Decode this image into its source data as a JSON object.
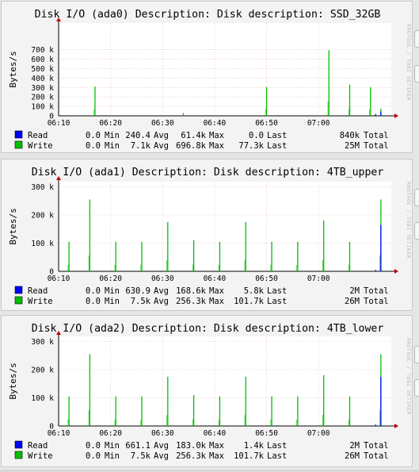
{
  "chart_data": [
    {
      "type": "line",
      "title": "Disk I/O (ada0) Description: Disk description: SSD_32GB",
      "ylabel": "Bytes/s",
      "watermark": "RRDTOOL / TOBI OETIKER",
      "x_ticks": [
        "06:10",
        "06:20",
        "06:30",
        "06:40",
        "06:50",
        "07:00"
      ],
      "y_ticks": [
        "0",
        "100 k",
        "200 k",
        "300 k",
        "400 k",
        "500 k",
        "600 k",
        "700 k"
      ],
      "ylim": [
        0,
        740000
      ],
      "grid": true,
      "series": [
        {
          "name": "Read",
          "color": "#0000ff",
          "stats": [
            "0.0",
            "Min",
            "240.4",
            "Avg",
            "61.4k",
            "Max",
            "0.0",
            "Last",
            "840k",
            "Total"
          ],
          "spikes": [
            [
              "07:11",
              20000
            ],
            [
              "07:12",
              45000
            ]
          ]
        },
        {
          "name": "Write",
          "color": "#00c000",
          "stats": [
            "0.0",
            "Min",
            "7.1k",
            "Avg",
            "696.8k",
            "Max",
            "77.3k",
            "Last",
            "25M",
            "Total"
          ],
          "spikes": [
            [
              "06:17",
              310000
            ],
            [
              "06:34",
              30000
            ],
            [
              "06:50",
              305000
            ],
            [
              "07:02",
              695000
            ],
            [
              "07:06",
              330000
            ],
            [
              "07:10",
              305000
            ],
            [
              "07:12",
              77000
            ]
          ]
        }
      ]
    },
    {
      "type": "line",
      "title": "Disk I/O (ada1) Description: Disk description: 4TB_upper",
      "ylabel": "Bytes/s",
      "watermark": "RRDTOOL / TOBI OETIKER",
      "x_ticks": [
        "06:10",
        "06:20",
        "06:30",
        "06:40",
        "06:50",
        "07:00"
      ],
      "y_ticks": [
        "0",
        "100 k",
        "200 k",
        "300 k"
      ],
      "ylim": [
        0,
        310000
      ],
      "grid": true,
      "series": [
        {
          "name": "Read",
          "color": "#0000ff",
          "stats": [
            "0.0",
            "Min",
            "630.9",
            "Avg",
            "168.6k",
            "Max",
            "5.8k",
            "Last",
            "2M",
            "Total"
          ],
          "spikes": [
            [
              "07:11",
              5000
            ],
            [
              "07:12",
              165000
            ]
          ]
        },
        {
          "name": "Write",
          "color": "#00c000",
          "stats": [
            "0.0",
            "Min",
            "7.5k",
            "Avg",
            "256.3k",
            "Max",
            "101.7k",
            "Last",
            "26M",
            "Total"
          ],
          "spikes": [
            [
              "06:12",
              105000
            ],
            [
              "06:16",
              255000
            ],
            [
              "06:21",
              105000
            ],
            [
              "06:26",
              105000
            ],
            [
              "06:31",
              175000
            ],
            [
              "06:36",
              110000
            ],
            [
              "06:41",
              105000
            ],
            [
              "06:46",
              175000
            ],
            [
              "06:51",
              105000
            ],
            [
              "06:56",
              105000
            ],
            [
              "07:01",
              180000
            ],
            [
              "07:06",
              105000
            ],
            [
              "07:12",
              255000
            ]
          ]
        }
      ]
    },
    {
      "type": "line",
      "title": "Disk I/O (ada2) Description: Disk description: 4TB_lower",
      "ylabel": "Bytes/s",
      "watermark": "RRDTOOL / TOBI OETIKER",
      "x_ticks": [
        "06:10",
        "06:20",
        "06:30",
        "06:40",
        "06:50",
        "07:00"
      ],
      "y_ticks": [
        "0",
        "100 k",
        "200 k",
        "300 k"
      ],
      "ylim": [
        0,
        310000
      ],
      "grid": true,
      "series": [
        {
          "name": "Read",
          "color": "#0000ff",
          "stats": [
            "0.0",
            "Min",
            "661.1",
            "Avg",
            "183.0k",
            "Max",
            "1.4k",
            "Last",
            "2M",
            "Total"
          ],
          "spikes": [
            [
              "07:11",
              5000
            ],
            [
              "07:12",
              175000
            ]
          ]
        },
        {
          "name": "Write",
          "color": "#00c000",
          "stats": [
            "0.0",
            "Min",
            "7.5k",
            "Avg",
            "256.3k",
            "Max",
            "101.7k",
            "Last",
            "26M",
            "Total"
          ],
          "spikes": [
            [
              "06:12",
              105000
            ],
            [
              "06:16",
              255000
            ],
            [
              "06:21",
              105000
            ],
            [
              "06:26",
              105000
            ],
            [
              "06:31",
              175000
            ],
            [
              "06:36",
              110000
            ],
            [
              "06:41",
              105000
            ],
            [
              "06:46",
              175000
            ],
            [
              "06:51",
              105000
            ],
            [
              "06:56",
              105000
            ],
            [
              "07:01",
              180000
            ],
            [
              "07:06",
              105000
            ],
            [
              "07:12",
              255000
            ]
          ]
        }
      ]
    }
  ]
}
